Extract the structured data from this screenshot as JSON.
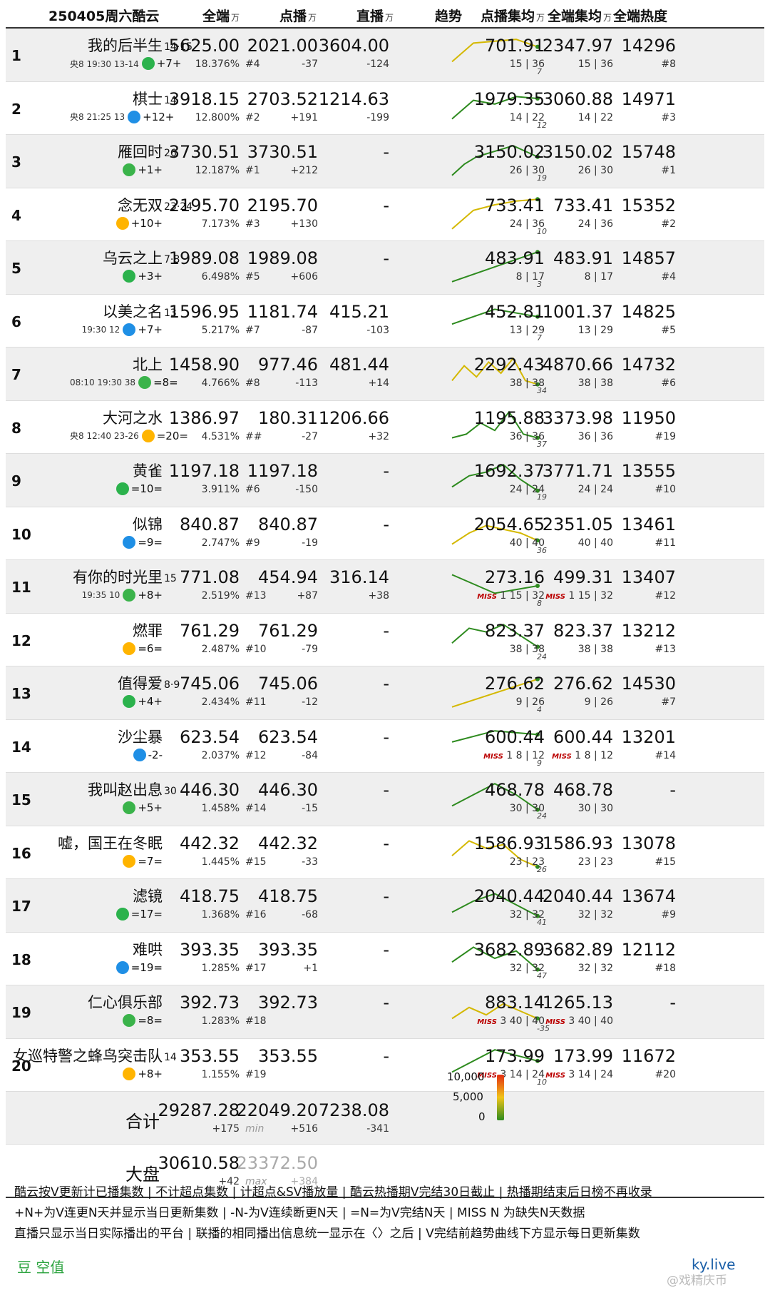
{
  "header": {
    "date_label": "250405周六酷云",
    "col_total": "全端",
    "col_vod": "点播",
    "col_live": "直播",
    "col_trend": "趋势",
    "col_vod_avg": "点播集均",
    "col_total_avg": "全端集均",
    "col_heat": "全端热度",
    "unit": "万"
  },
  "chart_data": {
    "type": "table",
    "rows": [
      {
        "rank": "1",
        "title": "我的后半生",
        "ep": "14·15",
        "sub": "央8 19:30 13-14",
        "chg": "+7+",
        "total": "5625.00",
        "share": "18.376%",
        "vod": "2021.00",
        "vod_rank": "#4",
        "vod_chg": "-37",
        "live": "3604.00",
        "live_chg": "-124",
        "trend_n": "7",
        "vod_avg": "701.91",
        "vod_avg_ep": "15 | 36",
        "tot_avg": "2347.97",
        "tot_avg_ep": "15 | 36",
        "heat": "14296",
        "heat_rank": "#8",
        "miss": ""
      },
      {
        "rank": "2",
        "title": "棋士",
        "ep": "14",
        "sub": "央8 21:25 13",
        "chg": "+12+",
        "total": "3918.15",
        "share": "12.800%",
        "vod": "2703.52",
        "vod_rank": "#2",
        "vod_chg": "+191",
        "live": "1214.63",
        "live_chg": "-199",
        "trend_n": "12",
        "vod_avg": "1979.35",
        "vod_avg_ep": "14 | 22",
        "tot_avg": "3060.88",
        "tot_avg_ep": "14 | 22",
        "heat": "14971",
        "heat_rank": "#3",
        "miss": ""
      },
      {
        "rank": "3",
        "title": "雁回时",
        "ep": "26",
        "sub": "",
        "chg": "+1+",
        "total": "3730.51",
        "share": "12.187%",
        "vod": "3730.51",
        "vod_rank": "#1",
        "vod_chg": "+212",
        "live": "-",
        "live_chg": "",
        "trend_n": "19",
        "vod_avg": "3150.02",
        "vod_avg_ep": "26 | 30",
        "tot_avg": "3150.02",
        "tot_avg_ep": "26 | 30",
        "heat": "15748",
        "heat_rank": "#1",
        "miss": ""
      },
      {
        "rank": "4",
        "title": "念无双",
        "ep": "23·24",
        "sub": "",
        "chg": "+10+",
        "total": "2195.70",
        "share": "7.173%",
        "vod": "2195.70",
        "vod_rank": "#3",
        "vod_chg": "+130",
        "live": "-",
        "live_chg": "",
        "trend_n": "10",
        "vod_avg": "733.41",
        "vod_avg_ep": "24 | 36",
        "tot_avg": "733.41",
        "tot_avg_ep": "24 | 36",
        "heat": "15352",
        "heat_rank": "#2",
        "miss": ""
      },
      {
        "rank": "5",
        "title": "乌云之上",
        "ep": "7·8",
        "sub": "",
        "chg": "+3+",
        "total": "1989.08",
        "share": "6.498%",
        "vod": "1989.08",
        "vod_rank": "#5",
        "vod_chg": "+606",
        "live": "-",
        "live_chg": "",
        "trend_n": "3",
        "vod_avg": "483.91",
        "vod_avg_ep": "8 | 17",
        "tot_avg": "483.91",
        "tot_avg_ep": "8 | 17",
        "heat": "14857",
        "heat_rank": "#4",
        "miss": ""
      },
      {
        "rank": "6",
        "title": "以美之名",
        "ep": "13",
        "sub": "19:30 12",
        "chg": "+7+",
        "total": "1596.95",
        "share": "5.217%",
        "vod": "1181.74",
        "vod_rank": "#7",
        "vod_chg": "-87",
        "live": "415.21",
        "live_chg": "-103",
        "trend_n": "7",
        "vod_avg": "452.81",
        "vod_avg_ep": "13 | 29",
        "tot_avg": "1001.37",
        "tot_avg_ep": "13 | 29",
        "heat": "14825",
        "heat_rank": "#5",
        "miss": ""
      },
      {
        "rank": "7",
        "title": "北上",
        "ep": "",
        "sub": "08:10 19:30 38",
        "chg": "=8=",
        "total": "1458.90",
        "share": "4.766%",
        "vod": "977.46",
        "vod_rank": "#8",
        "vod_chg": "-113",
        "live": "481.44",
        "live_chg": "+14",
        "trend_n": "34",
        "vod_avg": "2292.43",
        "vod_avg_ep": "38 | 38",
        "tot_avg": "4870.66",
        "tot_avg_ep": "38 | 38",
        "heat": "14732",
        "heat_rank": "#6",
        "miss": ""
      },
      {
        "rank": "8",
        "title": "大河之水",
        "ep": "",
        "sub": "央8 12:40 23-26",
        "chg": "=20=",
        "total": "1386.97",
        "share": "4.531%",
        "vod": "180.31",
        "vod_rank": "##",
        "vod_chg": "-27",
        "live": "1206.66",
        "live_chg": "+32",
        "trend_n": "37",
        "vod_avg": "1195.88",
        "vod_avg_ep": "36 | 36",
        "tot_avg": "3373.98",
        "tot_avg_ep": "36 | 36",
        "heat": "11950",
        "heat_rank": "#19",
        "miss": ""
      },
      {
        "rank": "9",
        "title": "黄雀",
        "ep": "",
        "sub": "",
        "chg": "=10=",
        "total": "1197.18",
        "share": "3.911%",
        "vod": "1197.18",
        "vod_rank": "#6",
        "vod_chg": "-150",
        "live": "-",
        "live_chg": "",
        "trend_n": "19",
        "vod_avg": "1692.37",
        "vod_avg_ep": "24 | 24",
        "tot_avg": "3771.71",
        "tot_avg_ep": "24 | 24",
        "heat": "13555",
        "heat_rank": "#10",
        "miss": ""
      },
      {
        "rank": "10",
        "title": "似锦",
        "ep": "",
        "sub": "",
        "chg": "=9=",
        "total": "840.87",
        "share": "2.747%",
        "vod": "840.87",
        "vod_rank": "#9",
        "vod_chg": "-19",
        "live": "-",
        "live_chg": "",
        "trend_n": "36",
        "vod_avg": "2054.65",
        "vod_avg_ep": "40 | 40",
        "tot_avg": "2351.05",
        "tot_avg_ep": "40 | 40",
        "heat": "13461",
        "heat_rank": "#11",
        "miss": ""
      },
      {
        "rank": "11",
        "title": "有你的时光里",
        "ep": "15",
        "sub": "19:35 10",
        "chg": "+8+",
        "total": "771.08",
        "share": "2.519%",
        "vod": "454.94",
        "vod_rank": "#13",
        "vod_chg": "+87",
        "live": "316.14",
        "live_chg": "+38",
        "trend_n": "8",
        "vod_avg": "273.16",
        "vod_avg_ep": "1 15 | 32",
        "tot_avg": "499.31",
        "tot_avg_ep": "1 15 | 32",
        "heat": "13407",
        "heat_rank": "#12",
        "miss": "MISS"
      },
      {
        "rank": "12",
        "title": "燃罪",
        "ep": "",
        "sub": "",
        "chg": "=6=",
        "total": "761.29",
        "share": "2.487%",
        "vod": "761.29",
        "vod_rank": "#10",
        "vod_chg": "-79",
        "live": "-",
        "live_chg": "",
        "trend_n": "24",
        "vod_avg": "823.37",
        "vod_avg_ep": "38 | 38",
        "tot_avg": "823.37",
        "tot_avg_ep": "38 | 38",
        "heat": "13212",
        "heat_rank": "#13",
        "miss": ""
      },
      {
        "rank": "13",
        "title": "值得爱",
        "ep": "8·9",
        "sub": "",
        "chg": "+4+",
        "total": "745.06",
        "share": "2.434%",
        "vod": "745.06",
        "vod_rank": "#11",
        "vod_chg": "-12",
        "live": "-",
        "live_chg": "",
        "trend_n": "4",
        "vod_avg": "276.62",
        "vod_avg_ep": "9 | 26",
        "tot_avg": "276.62",
        "tot_avg_ep": "9 | 26",
        "heat": "14530",
        "heat_rank": "#7",
        "miss": ""
      },
      {
        "rank": "14",
        "title": "沙尘暴",
        "ep": "",
        "sub": "",
        "chg": "-2-",
        "total": "623.54",
        "share": "2.037%",
        "vod": "623.54",
        "vod_rank": "#12",
        "vod_chg": "-84",
        "live": "-",
        "live_chg": "",
        "trend_n": "9",
        "vod_avg": "600.44",
        "vod_avg_ep": "1 8 | 12",
        "tot_avg": "600.44",
        "tot_avg_ep": "1 8 | 12",
        "heat": "13201",
        "heat_rank": "#14",
        "miss": "MISS"
      },
      {
        "rank": "15",
        "title": "我叫赵出息",
        "ep": "30",
        "sub": "",
        "chg": "+5+",
        "total": "446.30",
        "share": "1.458%",
        "vod": "446.30",
        "vod_rank": "#14",
        "vod_chg": "-15",
        "live": "-",
        "live_chg": "",
        "trend_n": "24",
        "vod_avg": "468.78",
        "vod_avg_ep": "30 | 30",
        "tot_avg": "468.78",
        "tot_avg_ep": "30 | 30",
        "heat": "-",
        "heat_rank": "",
        "miss": ""
      },
      {
        "rank": "16",
        "title": "嘘，国王在冬眠",
        "ep": "",
        "sub": "",
        "chg": "=7=",
        "total": "442.32",
        "share": "1.445%",
        "vod": "442.32",
        "vod_rank": "#15",
        "vod_chg": "-33",
        "live": "-",
        "live_chg": "",
        "trend_n": "26",
        "vod_avg": "1586.93",
        "vod_avg_ep": "23 | 23",
        "tot_avg": "1586.93",
        "tot_avg_ep": "23 | 23",
        "heat": "13078",
        "heat_rank": "#15",
        "miss": ""
      },
      {
        "rank": "17",
        "title": "滤镜",
        "ep": "",
        "sub": "",
        "chg": "=17=",
        "total": "418.75",
        "share": "1.368%",
        "vod": "418.75",
        "vod_rank": "#16",
        "vod_chg": "-68",
        "live": "-",
        "live_chg": "",
        "trend_n": "41",
        "vod_avg": "2040.44",
        "vod_avg_ep": "32 | 32",
        "tot_avg": "2040.44",
        "tot_avg_ep": "32 | 32",
        "heat": "13674",
        "heat_rank": "#9",
        "miss": ""
      },
      {
        "rank": "18",
        "title": "难哄",
        "ep": "",
        "sub": "",
        "chg": "=19=",
        "total": "393.35",
        "share": "1.285%",
        "vod": "393.35",
        "vod_rank": "#17",
        "vod_chg": "+1",
        "live": "-",
        "live_chg": "",
        "trend_n": "47",
        "vod_avg": "3682.89",
        "vod_avg_ep": "32 | 32",
        "tot_avg": "3682.89",
        "tot_avg_ep": "32 | 32",
        "heat": "12112",
        "heat_rank": "#18",
        "miss": ""
      },
      {
        "rank": "19",
        "title": "仁心俱乐部",
        "ep": "",
        "sub": "",
        "chg": "=8=",
        "total": "392.73",
        "share": "1.283%",
        "vod": "392.73",
        "vod_rank": "#18",
        "vod_chg": "",
        "live": "-",
        "live_chg": "",
        "trend_n": "-35",
        "vod_avg": "883.14",
        "vod_avg_ep": "3 40 | 40",
        "tot_avg": "1265.13",
        "tot_avg_ep": "3 40 | 40",
        "heat": "-",
        "heat_rank": "",
        "miss": "MISS"
      },
      {
        "rank": "20",
        "title": "女巡特警之蜂鸟突击队",
        "ep": "14",
        "sub": "",
        "chg": "+8+",
        "total": "353.55",
        "share": "1.155%",
        "vod": "353.55",
        "vod_rank": "#19",
        "vod_chg": "",
        "live": "-",
        "live_chg": "",
        "trend_n": "10",
        "vod_avg": "173.99",
        "vod_avg_ep": "3 14 | 24",
        "tot_avg": "173.99",
        "tot_avg_ep": "3 14 | 24",
        "heat": "11672",
        "heat_rank": "#20",
        "miss": "MISS"
      }
    ],
    "trend_series": [
      [
        0.3,
        0.8,
        0.85,
        0.9,
        0.7
      ],
      [
        0.2,
        0.7,
        0.6,
        0.8,
        0.75
      ],
      [
        0.1,
        0.4,
        0.6,
        0.7,
        0.8,
        0.9,
        0.75,
        0.6
      ],
      [
        0.1,
        0.6,
        0.75,
        0.85,
        0.9
      ],
      [
        0.1,
        0.9
      ],
      [
        0.4,
        0.8,
        0.6
      ],
      [
        0.3,
        0.7,
        0.4,
        0.8,
        0.5,
        0.9,
        0.3,
        0.2
      ],
      [
        0.2,
        0.3,
        0.6,
        0.4,
        0.9,
        0.3,
        0.2
      ],
      [
        0.3,
        0.6,
        0.7,
        0.9,
        0.5,
        0.2
      ],
      [
        0.2,
        0.5,
        0.7,
        0.6,
        0.5,
        0.3
      ],
      [
        0.8,
        0.3,
        0.5
      ],
      [
        0.4,
        0.8,
        0.7,
        0.9,
        0.6,
        0.3
      ],
      [
        0.1,
        0.85
      ],
      [
        0.6,
        0.9,
        0.8
      ],
      [
        0.3,
        0.6,
        0.9,
        0.6,
        0.2
      ],
      [
        0.4,
        0.8,
        0.6,
        0.7,
        0.3,
        0.1
      ],
      [
        0.3,
        0.6,
        0.8,
        0.5,
        0.2
      ],
      [
        0.4,
        0.8,
        0.5,
        0.7,
        0.2
      ],
      [
        0.3,
        0.6,
        0.4,
        0.7,
        0.5,
        0.3
      ],
      [
        0.3,
        0.9,
        0.6
      ]
    ],
    "totals": {
      "label": "合计",
      "total": "29287.28",
      "total_chg": "+175",
      "vod": "22049.20",
      "vod_note": "min",
      "vod_chg": "+516",
      "live": "7238.08",
      "live_chg": "-341"
    },
    "market": {
      "label": "大盘",
      "total": "30610.58",
      "total_chg": "+42",
      "vod": "23372.50",
      "vod_note": "max",
      "vod_chg": "+384"
    },
    "color_scale": {
      "top": "10,000",
      "mid": "5,000",
      "bottom": "0",
      "high_color": "#e52d12",
      "low_color": "#2e8b1f"
    }
  },
  "footer": {
    "line1": "酷云按V更新计已播集数 | 不计超点集数 | 计超点&SV播放量 | 酷云热播期V完结30日截止 | 热播期结束后日榜不再收录",
    "line2": "+N+为V连更N天并显示当日更新集数 | -N-为V连续断更N天 | =N=为V完结N天 | MISS N 为缺失N天数据",
    "line3": "直播只显示当日实际播出的平台 | 联播的相同播出信息统一显示在〈〉之后 | V完结前趋势曲线下方显示每日更新集数",
    "logo_left": "豆 空值",
    "logo_right": "ky.live",
    "watermark": "@戏精庆币"
  }
}
